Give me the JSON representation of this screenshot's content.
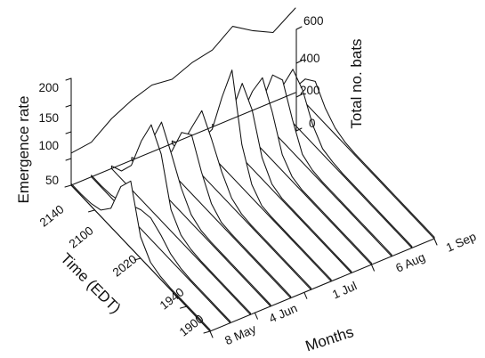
{
  "chart_data": {
    "type": "area",
    "title": "",
    "colors": {
      "line": "#111111",
      "background": "#ffffff"
    },
    "axes": {
      "rate": {
        "label": "Emergence rate",
        "ticks": [
          "50",
          "100",
          "150",
          "200"
        ],
        "range": [
          0,
          210
        ]
      },
      "time": {
        "label": "Time (EDT)",
        "ticks": [
          "1900",
          "1940",
          "2020",
          "2100",
          "2140"
        ]
      },
      "months": {
        "label": "Months",
        "ticks": [
          "8 May",
          "4 Jun",
          "1 Jul",
          "6 Aug",
          "1 Sep"
        ]
      },
      "total": {
        "label": "Total no. bats",
        "ticks": [
          "0",
          "200",
          "400",
          "600"
        ],
        "range": [
          0,
          600
        ]
      }
    },
    "slice_positions": [
      0,
      0.09,
      0.18,
      0.27,
      0.36,
      0.45,
      0.54,
      0.63,
      0.72,
      0.81,
      0.9,
      1.0
    ],
    "rate_profiles": [
      [
        3,
        3,
        3,
        3,
        3,
        5,
        12,
        40,
        125,
        95,
        35,
        12,
        5,
        3,
        3
      ],
      [
        3,
        3,
        3,
        3,
        3,
        5,
        12,
        28,
        40,
        36,
        25,
        12,
        5,
        3,
        3
      ],
      [
        3,
        3,
        3,
        3,
        3,
        3,
        5,
        12,
        40,
        125,
        160,
        110,
        45,
        15,
        5
      ],
      [
        3,
        3,
        3,
        3,
        3,
        3,
        3,
        5,
        15,
        45,
        90,
        130,
        75,
        20,
        5
      ],
      [
        3,
        3,
        3,
        3,
        3,
        3,
        3,
        5,
        20,
        60,
        110,
        95,
        40,
        12,
        5
      ],
      [
        3,
        3,
        3,
        3,
        3,
        3,
        3,
        5,
        15,
        45,
        85,
        120,
        70,
        18,
        5
      ],
      [
        3,
        3,
        3,
        3,
        3,
        3,
        3,
        5,
        25,
        80,
        200,
        130,
        50,
        12,
        5
      ],
      [
        3,
        3,
        3,
        3,
        3,
        3,
        3,
        3,
        10,
        40,
        110,
        140,
        70,
        15,
        5
      ],
      [
        3,
        3,
        3,
        3,
        3,
        3,
        3,
        3,
        8,
        30,
        90,
        135,
        90,
        30,
        8
      ],
      [
        3,
        3,
        3,
        3,
        3,
        3,
        3,
        3,
        5,
        15,
        60,
        115,
        105,
        40,
        8
      ],
      [
        3,
        3,
        3,
        3,
        3,
        3,
        3,
        3,
        5,
        10,
        35,
        80,
        100,
        50,
        10
      ],
      [
        3,
        3,
        3,
        3,
        3,
        3,
        3,
        3,
        3,
        5,
        12,
        30,
        60,
        45,
        10
      ]
    ],
    "total_bats": [
      190,
      205,
      295,
      355,
      395,
      380,
      430,
      455,
      545,
      470,
      410,
      500
    ]
  }
}
